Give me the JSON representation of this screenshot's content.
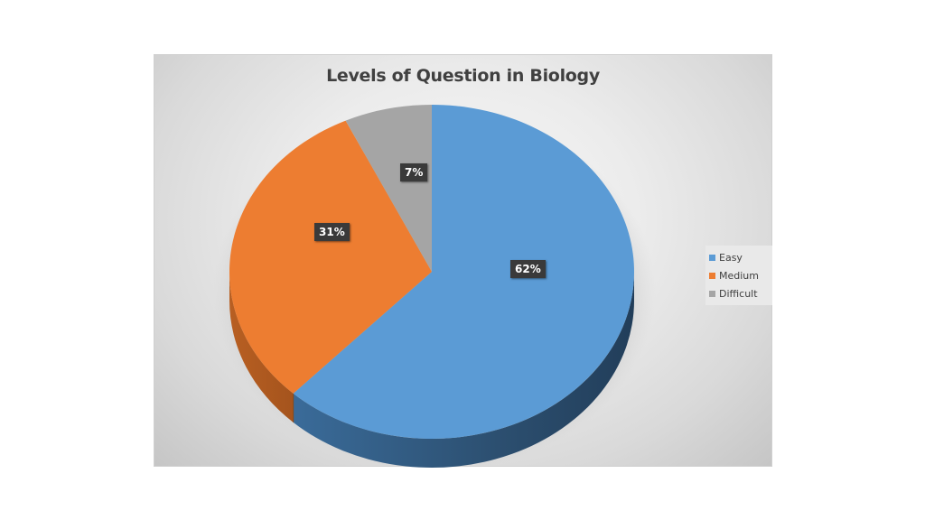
{
  "chart_data": {
    "type": "pie",
    "variant": "3d-pie",
    "title": "Levels of Question in Biology",
    "categories": [
      "Easy",
      "Medium",
      "Difficult"
    ],
    "values": [
      62,
      31,
      7
    ],
    "value_labels": [
      "62%",
      "31%",
      "7%"
    ],
    "colors": [
      "#5b9bd5",
      "#ed7d31",
      "#a5a5a5"
    ],
    "legend_position": "right",
    "start_angle_deg": 0,
    "direction": "clockwise"
  },
  "legend": {
    "items": [
      {
        "label": "Easy",
        "color": "#5b9bd5"
      },
      {
        "label": "Medium",
        "color": "#ed7d31"
      },
      {
        "label": "Difficult",
        "color": "#a5a5a5"
      }
    ]
  },
  "labels": {
    "easy": "62%",
    "medium": "31%",
    "difficult": "7%"
  }
}
